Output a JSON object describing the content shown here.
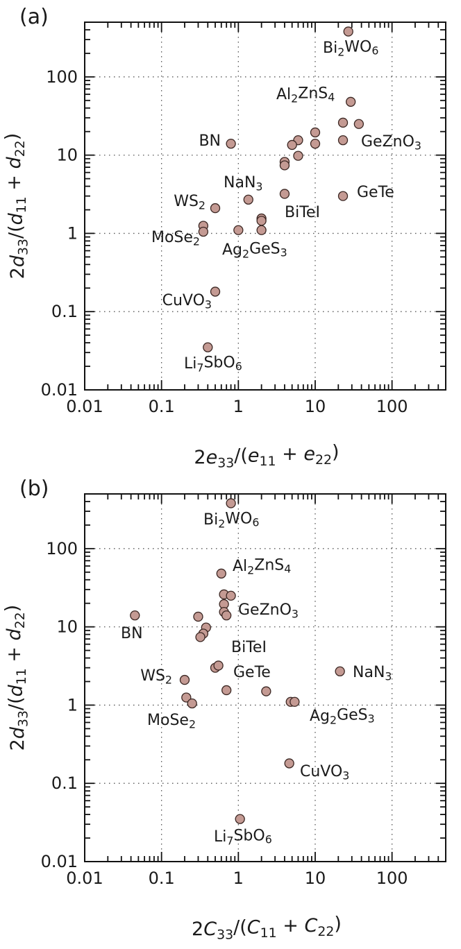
{
  "chart_data": [
    {
      "type": "scatter",
      "panel_label": "(a)",
      "xlabel": {
        "main": "2e",
        "sub1": "33",
        "mid": "/(e",
        "sub2": "11",
        "mid2": " + e",
        "sub3": "22",
        "end": ")"
      },
      "ylabel": {
        "main": "2d",
        "sub1": "33",
        "mid": "/(d",
        "sub2": "11",
        "mid2": " + d",
        "sub3": "22",
        "end": ")"
      },
      "xscale": "log",
      "yscale": "log",
      "xlim": [
        0.01,
        500
      ],
      "ylim": [
        0.01,
        500
      ],
      "grid": true,
      "xtick_labels": [
        "0.01",
        "0.1",
        "1",
        "10",
        "100"
      ],
      "ytick_labels": [
        "0.01",
        "0.1",
        "1",
        "10",
        "100"
      ],
      "points": [
        {
          "x": 27,
          "y": 380
        },
        {
          "x": 29,
          "y": 48
        },
        {
          "x": 23,
          "y": 26
        },
        {
          "x": 37,
          "y": 25
        },
        {
          "x": 10,
          "y": 19.5
        },
        {
          "x": 6,
          "y": 15.5
        },
        {
          "x": 5,
          "y": 13.5
        },
        {
          "x": 10,
          "y": 14
        },
        {
          "x": 23,
          "y": 15.5
        },
        {
          "x": 0.8,
          "y": 14
        },
        {
          "x": 6,
          "y": 9.8
        },
        {
          "x": 4,
          "y": 8.2
        },
        {
          "x": 4,
          "y": 7.4
        },
        {
          "x": 1.35,
          "y": 2.7
        },
        {
          "x": 4,
          "y": 3.2
        },
        {
          "x": 23,
          "y": 3
        },
        {
          "x": 0.5,
          "y": 2.1
        },
        {
          "x": 2,
          "y": 1.55
        },
        {
          "x": 2,
          "y": 1.45
        },
        {
          "x": 0.35,
          "y": 1.25
        },
        {
          "x": 0.35,
          "y": 1.05
        },
        {
          "x": 1,
          "y": 1.1
        },
        {
          "x": 2,
          "y": 1.1
        },
        {
          "x": 0.5,
          "y": 0.18
        },
        {
          "x": 0.4,
          "y": 0.035
        }
      ],
      "annotations": [
        {
          "name": "label-bi2wo6",
          "parts": [
            [
              "Bi",
              ""
            ],
            [
              "2",
              "sub"
            ],
            [
              "WO",
              ""
            ],
            [
              "6",
              "sub"
            ]
          ]
        },
        {
          "name": "label-al2zns4",
          "parts": [
            [
              "Al",
              ""
            ],
            [
              "2",
              "sub"
            ],
            [
              "ZnS",
              ""
            ],
            [
              "4",
              "sub"
            ]
          ]
        },
        {
          "name": "label-bn",
          "parts": [
            [
              "BN",
              ""
            ]
          ]
        },
        {
          "name": "label-geznO3",
          "parts": [
            [
              "GeZnO",
              ""
            ],
            [
              "3",
              "sub"
            ]
          ]
        },
        {
          "name": "label-nan3",
          "parts": [
            [
              "NaN",
              ""
            ],
            [
              "3",
              "sub"
            ]
          ]
        },
        {
          "name": "label-gete",
          "parts": [
            [
              "GeTe",
              ""
            ]
          ]
        },
        {
          "name": "label-ws2",
          "parts": [
            [
              "WS",
              ""
            ],
            [
              "2",
              "sub"
            ]
          ]
        },
        {
          "name": "label-bitei",
          "parts": [
            [
              "BiTeI",
              ""
            ]
          ]
        },
        {
          "name": "label-mose2",
          "parts": [
            [
              "MoSe",
              ""
            ],
            [
              "2",
              "sub"
            ]
          ]
        },
        {
          "name": "label-ag2ges3",
          "parts": [
            [
              "Ag",
              ""
            ],
            [
              "2",
              "sub"
            ],
            [
              "GeS",
              ""
            ],
            [
              "3",
              "sub"
            ]
          ]
        },
        {
          "name": "label-cuvo3",
          "parts": [
            [
              "CuVO",
              ""
            ],
            [
              "3",
              "sub"
            ]
          ]
        },
        {
          "name": "label-li7sbo6",
          "parts": [
            [
              "Li",
              ""
            ],
            [
              "7",
              "sub"
            ],
            [
              "SbO",
              ""
            ],
            [
              "6",
              "sub"
            ]
          ]
        }
      ]
    },
    {
      "type": "scatter",
      "panel_label": "(b)",
      "xlabel": {
        "main": "2C",
        "sub1": "33",
        "mid": "/(C",
        "sub2": "11",
        "mid2": " + C",
        "sub3": "22",
        "end": ")"
      },
      "ylabel": {
        "main": "2d",
        "sub1": "33",
        "mid": "/(d",
        "sub2": "11",
        "mid2": " + d",
        "sub3": "22",
        "end": ")"
      },
      "xscale": "log",
      "yscale": "log",
      "xlim": [
        0.01,
        500
      ],
      "ylim": [
        0.01,
        500
      ],
      "grid": true,
      "xtick_labels": [
        "0.01",
        "0.1",
        "1",
        "10",
        "100"
      ],
      "ytick_labels": [
        "0.01",
        "0.1",
        "1",
        "10",
        "100"
      ],
      "points": [
        {
          "x": 0.8,
          "y": 380
        },
        {
          "x": 0.6,
          "y": 48
        },
        {
          "x": 0.65,
          "y": 26
        },
        {
          "x": 0.8,
          "y": 25
        },
        {
          "x": 0.65,
          "y": 19.5
        },
        {
          "x": 0.65,
          "y": 15.5
        },
        {
          "x": 0.7,
          "y": 14
        },
        {
          "x": 0.3,
          "y": 13.5
        },
        {
          "x": 0.045,
          "y": 14
        },
        {
          "x": 0.38,
          "y": 9.8
        },
        {
          "x": 0.35,
          "y": 8.2
        },
        {
          "x": 0.32,
          "y": 7.4
        },
        {
          "x": 0.5,
          "y": 3
        },
        {
          "x": 0.55,
          "y": 3.2
        },
        {
          "x": 21,
          "y": 2.7
        },
        {
          "x": 0.2,
          "y": 2.1
        },
        {
          "x": 0.7,
          "y": 1.55
        },
        {
          "x": 2.3,
          "y": 1.5
        },
        {
          "x": 0.21,
          "y": 1.25
        },
        {
          "x": 0.25,
          "y": 1.05
        },
        {
          "x": 4.8,
          "y": 1.1
        },
        {
          "x": 5.4,
          "y": 1.1
        },
        {
          "x": 4.6,
          "y": 0.18
        },
        {
          "x": 1.05,
          "y": 0.035
        }
      ],
      "annotations": [
        {
          "name": "label-bi2wo6",
          "parts": [
            [
              "Bi",
              ""
            ],
            [
              "2",
              "sub"
            ],
            [
              "WO",
              ""
            ],
            [
              "6",
              "sub"
            ]
          ]
        },
        {
          "name": "label-al2zns4",
          "parts": [
            [
              "Al",
              ""
            ],
            [
              "2",
              "sub"
            ],
            [
              "ZnS",
              ""
            ],
            [
              "4",
              "sub"
            ]
          ]
        },
        {
          "name": "label-geznO3",
          "parts": [
            [
              "GeZnO",
              ""
            ],
            [
              "3",
              "sub"
            ]
          ]
        },
        {
          "name": "label-bn",
          "parts": [
            [
              "BN",
              ""
            ]
          ]
        },
        {
          "name": "label-bitei",
          "parts": [
            [
              "BiTeI",
              ""
            ]
          ]
        },
        {
          "name": "label-ws2",
          "parts": [
            [
              "WS",
              ""
            ],
            [
              "2",
              "sub"
            ]
          ]
        },
        {
          "name": "label-gete",
          "parts": [
            [
              "GeTe",
              ""
            ]
          ]
        },
        {
          "name": "label-nan3",
          "parts": [
            [
              "NaN",
              ""
            ],
            [
              "3",
              "sub"
            ]
          ]
        },
        {
          "name": "label-mose2",
          "parts": [
            [
              "MoSe",
              ""
            ],
            [
              "2",
              "sub"
            ]
          ]
        },
        {
          "name": "label-ag2ges3",
          "parts": [
            [
              "Ag",
              ""
            ],
            [
              "2",
              "sub"
            ],
            [
              "GeS",
              ""
            ],
            [
              "3",
              "sub"
            ]
          ]
        },
        {
          "name": "label-cuvo3",
          "parts": [
            [
              "CuVO",
              ""
            ],
            [
              "3",
              "sub"
            ]
          ]
        },
        {
          "name": "label-li7sbo6",
          "parts": [
            [
              "Li",
              ""
            ],
            [
              "7",
              "sub"
            ],
            [
              "SbO",
              ""
            ],
            [
              "6",
              "sub"
            ]
          ]
        }
      ]
    }
  ]
}
